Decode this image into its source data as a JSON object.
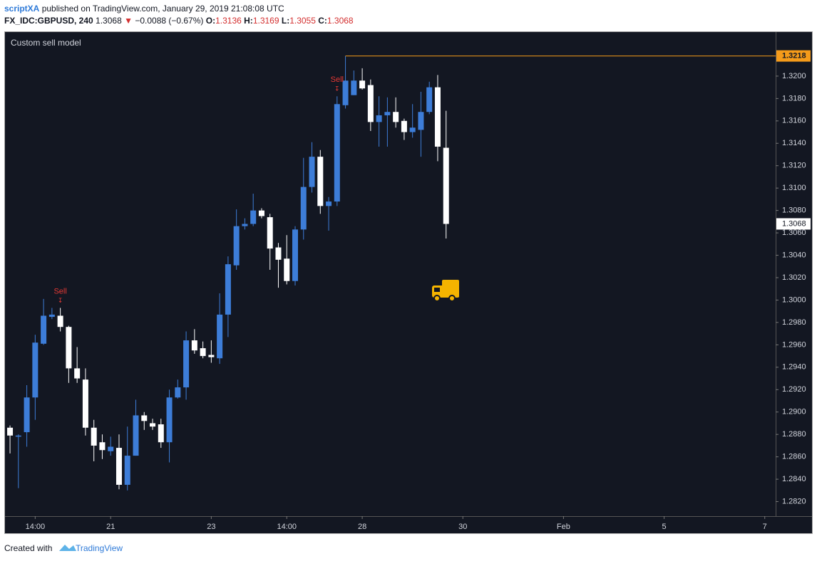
{
  "header": {
    "author": "scriptXA",
    "published": "published on TradingView.com, January 29, 2019 21:08:08 UTC",
    "symbol": "FX_IDC:GBPUSD, 240",
    "last": "1.3068",
    "change": "−0.0088 (−0.67%)",
    "ohlc": [
      {
        "label": "O:",
        "value": "1.3136"
      },
      {
        "label": "H:",
        "value": "1.3169"
      },
      {
        "label": "L:",
        "value": "1.3055"
      },
      {
        "label": "C:",
        "value": "1.3068"
      }
    ]
  },
  "chart_data": {
    "type": "candlestick",
    "indicator": "Custom sell model",
    "up_color": "#3d7dd8",
    "down_color": "#ffffff",
    "x": [
      0,
      1,
      2,
      3,
      4,
      5,
      6,
      7,
      8,
      9,
      10,
      11,
      12,
      13,
      14,
      15,
      16,
      17,
      18,
      19,
      20,
      21,
      22,
      23,
      24,
      25,
      26,
      27,
      28,
      29,
      30,
      31,
      32,
      33,
      34,
      35,
      36,
      37,
      38,
      39,
      40,
      41,
      42,
      43,
      44,
      45,
      46,
      47,
      48,
      49,
      50,
      51,
      52
    ],
    "open": [
      1.2886,
      1.2878,
      1.2882,
      1.2913,
      1.2961,
      1.2985,
      1.2986,
      1.2976,
      1.2939,
      1.2929,
      1.2886,
      1.2873,
      1.2865,
      1.2868,
      1.2835,
      1.2861,
      1.2897,
      1.289,
      1.2889,
      1.2873,
      1.2913,
      1.2922,
      1.2964,
      1.2957,
      1.2951,
      1.2948,
      1.2987,
      1.3031,
      1.3066,
      1.3068,
      1.308,
      1.3074,
      1.3047,
      1.3037,
      1.3017,
      1.3063,
      1.3101,
      1.3128,
      1.3084,
      1.3088,
      1.3174,
      1.3183,
      1.3196,
      1.3192,
      1.3159,
      1.3165,
      1.3168,
      1.316,
      1.315,
      1.3152,
      1.3168,
      1.319,
      1.3136
    ],
    "high": [
      1.2888,
      1.288,
      1.2924,
      1.2969,
      1.3001,
      1.2993,
      1.2993,
      1.2977,
      1.2958,
      1.2939,
      1.2893,
      1.288,
      1.2878,
      1.288,
      1.2887,
      1.2911,
      1.29,
      1.2894,
      1.2894,
      1.292,
      1.2929,
      1.2972,
      1.2974,
      1.2963,
      1.2964,
      1.3006,
      1.3039,
      1.3081,
      1.3073,
      1.3095,
      1.3082,
      1.3077,
      1.3051,
      1.3058,
      1.3066,
      1.3127,
      1.3141,
      1.3134,
      1.3092,
      1.3182,
      1.3218,
      1.3205,
      1.3207,
      1.3197,
      1.3182,
      1.3181,
      1.3181,
      1.3162,
      1.3175,
      1.3186,
      1.3195,
      1.3201,
      1.3169
    ],
    "low": [
      1.2863,
      1.2832,
      1.2869,
      1.2893,
      1.296,
      1.2983,
      1.2972,
      1.2926,
      1.2926,
      1.2879,
      1.2856,
      1.2858,
      1.2861,
      1.2831,
      1.283,
      1.2861,
      1.2884,
      1.2884,
      1.2868,
      1.2855,
      1.2912,
      1.2911,
      1.2952,
      1.2948,
      1.2944,
      1.2943,
      1.2967,
      1.3027,
      1.3063,
      1.3066,
      1.3073,
      1.3027,
      1.3011,
      1.3014,
      1.3013,
      1.3054,
      1.3096,
      1.3077,
      1.3062,
      1.3084,
      1.3171,
      1.3183,
      1.3188,
      1.3151,
      1.3137,
      1.3137,
      1.3154,
      1.3143,
      1.3145,
      1.3128,
      1.3166,
      1.3124,
      1.3055
    ],
    "close": [
      1.2879,
      1.2879,
      1.2913,
      1.2962,
      1.2986,
      1.2987,
      1.2976,
      1.2939,
      1.293,
      1.2886,
      1.287,
      1.2866,
      1.2869,
      1.2835,
      1.2861,
      1.2897,
      1.2892,
      1.2887,
      1.2873,
      1.2913,
      1.2922,
      1.2964,
      1.2955,
      1.295,
      1.2949,
      1.2987,
      1.3032,
      1.3066,
      1.3068,
      1.308,
      1.3075,
      1.3046,
      1.3036,
      1.3017,
      1.3063,
      1.3101,
      1.3128,
      1.3084,
      1.3088,
      1.3175,
      1.3196,
      1.3196,
      1.3189,
      1.3159,
      1.3165,
      1.3168,
      1.3159,
      1.315,
      1.3154,
      1.3168,
      1.319,
      1.3137,
      1.3068
    ],
    "signals": [
      {
        "label": "Sell",
        "x": 6
      },
      {
        "label": "Sell",
        "x": 39
      }
    ],
    "high_line": 1.3218,
    "last_price": 1.3068,
    "xlim": [
      -0.6,
      91.3
    ],
    "xticks": [
      {
        "value": 3,
        "label": "14:00"
      },
      {
        "value": 12,
        "label": "21"
      },
      {
        "value": 24,
        "label": "23"
      },
      {
        "value": 33,
        "label": "14:00"
      },
      {
        "value": 42,
        "label": "28"
      },
      {
        "value": 54,
        "label": "30"
      },
      {
        "value": 66,
        "label": "Feb"
      },
      {
        "value": 78,
        "label": "5"
      },
      {
        "value": 90,
        "label": "7"
      }
    ],
    "ylim": [
      1.2807,
      1.324
    ],
    "yticks": [
      {
        "value": 1.282,
        "label": "1.2820"
      },
      {
        "value": 1.284,
        "label": "1.2840"
      },
      {
        "value": 1.286,
        "label": "1.2860"
      },
      {
        "value": 1.288,
        "label": "1.2880"
      },
      {
        "value": 1.29,
        "label": "1.2900"
      },
      {
        "value": 1.292,
        "label": "1.2920"
      },
      {
        "value": 1.294,
        "label": "1.2940"
      },
      {
        "value": 1.296,
        "label": "1.2960"
      },
      {
        "value": 1.298,
        "label": "1.2980"
      },
      {
        "value": 1.3,
        "label": "1.3000"
      },
      {
        "value": 1.302,
        "label": "1.3020"
      },
      {
        "value": 1.304,
        "label": "1.3040"
      },
      {
        "value": 1.306,
        "label": "1.3060"
      },
      {
        "value": 1.308,
        "label": "1.3080"
      },
      {
        "value": 1.31,
        "label": "1.3100"
      },
      {
        "value": 1.312,
        "label": "1.3120"
      },
      {
        "value": 1.314,
        "label": "1.3140"
      },
      {
        "value": 1.316,
        "label": "1.3160"
      },
      {
        "value": 1.318,
        "label": "1.3180"
      },
      {
        "value": 1.32,
        "label": "1.3200"
      }
    ]
  },
  "footer": {
    "created": "Created with",
    "brand": "TradingView"
  }
}
